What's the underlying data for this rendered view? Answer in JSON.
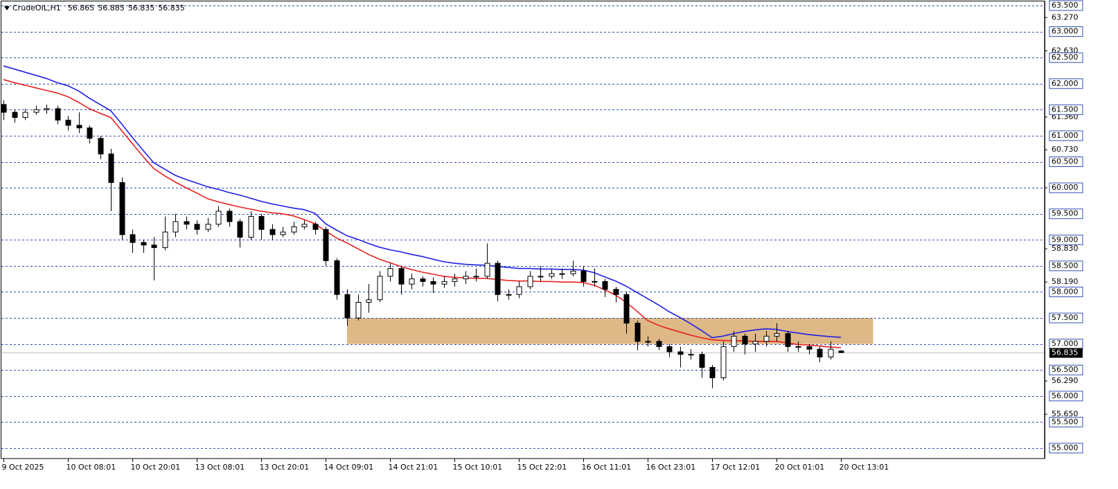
{
  "chart_data": {
    "type": "candlestick",
    "symbol": "CrudeOIL,H1",
    "header_values": [
      56.865,
      56.885,
      56.835,
      56.835
    ],
    "categories": [
      "9 Oct 2025",
      null,
      null,
      null,
      null,
      null,
      "10 Oct 08:01",
      null,
      null,
      null,
      null,
      null,
      "10 Oct 20:01",
      null,
      null,
      null,
      null,
      null,
      "13 Oct 08:01",
      null,
      null,
      null,
      null,
      null,
      "13 Oct 20:01",
      null,
      null,
      null,
      null,
      null,
      "14 Oct 09:01",
      null,
      null,
      null,
      null,
      null,
      "14 Oct 21:01",
      null,
      null,
      null,
      null,
      null,
      "15 Oct 10:01",
      null,
      null,
      null,
      null,
      null,
      "15 Oct 22:01",
      null,
      null,
      null,
      null,
      null,
      "16 Oct 11:01",
      null,
      null,
      null,
      null,
      null,
      "16 Oct 23:01",
      null,
      null,
      null,
      null,
      null,
      "17 Oct 12:01",
      null,
      null,
      null,
      null,
      null,
      "20 Oct 01:01",
      null,
      null,
      null,
      null,
      null,
      "20 Oct 13:01"
    ],
    "open": [
      61.6,
      61.45,
      61.35,
      61.45,
      61.5,
      61.52,
      61.3,
      61.2,
      61.15,
      60.95,
      60.65,
      60.1,
      59.1,
      58.95,
      58.9,
      58.85,
      59.15,
      59.35,
      59.3,
      59.2,
      59.3,
      59.55,
      59.35,
      59.05,
      59.45,
      59.2,
      59.1,
      59.15,
      59.25,
      59.3,
      59.2,
      58.6,
      57.95,
      57.5,
      57.8,
      57.85,
      58.3,
      58.45,
      58.15,
      58.25,
      58.2,
      58.15,
      58.2,
      58.25,
      58.3,
      58.3,
      58.55,
      57.95,
      57.95,
      58.1,
      58.3,
      58.3,
      58.35,
      58.35,
      58.4,
      58.2,
      58.2,
      58.05,
      57.95,
      57.4,
      57.05,
      57.05,
      56.95,
      56.85,
      56.8,
      56.8,
      56.55,
      56.35,
      56.95,
      57.15,
      57.0,
      57.05,
      57.15,
      57.2,
      56.95,
      56.95,
      56.9,
      56.75,
      56.865
    ],
    "high": [
      61.68,
      61.5,
      61.52,
      61.58,
      61.6,
      61.58,
      61.38,
      61.45,
      61.2,
      61.0,
      60.75,
      60.2,
      59.2,
      59.0,
      59.05,
      59.45,
      59.5,
      59.45,
      59.38,
      59.42,
      59.65,
      59.6,
      59.4,
      59.55,
      59.5,
      59.3,
      59.25,
      59.35,
      59.38,
      59.35,
      59.25,
      58.65,
      58.05,
      57.95,
      58.15,
      58.4,
      58.55,
      58.5,
      58.35,
      58.3,
      58.28,
      58.3,
      58.35,
      58.4,
      58.45,
      58.93,
      58.6,
      58.05,
      58.2,
      58.4,
      58.5,
      58.45,
      58.45,
      58.6,
      58.5,
      58.45,
      58.25,
      58.1,
      58.0,
      57.45,
      57.15,
      57.1,
      57.0,
      56.95,
      56.9,
      56.85,
      56.6,
      57.05,
      57.25,
      57.2,
      57.2,
      57.25,
      57.4,
      57.25,
      57.05,
      57.0,
      56.95,
      57.05,
      56.885
    ],
    "low": [
      61.3,
      61.25,
      61.3,
      61.4,
      61.42,
      61.22,
      61.1,
      61.05,
      60.85,
      60.55,
      59.55,
      59.0,
      58.75,
      58.75,
      58.22,
      58.8,
      59.05,
      59.2,
      59.1,
      59.15,
      59.25,
      59.25,
      58.85,
      59.0,
      59.0,
      59.0,
      59.05,
      59.1,
      59.2,
      59.1,
      58.5,
      57.85,
      57.35,
      57.45,
      57.6,
      57.8,
      58.2,
      57.95,
      58.05,
      58.1,
      57.98,
      58.08,
      58.1,
      58.15,
      58.2,
      58.25,
      57.82,
      57.85,
      57.88,
      58.05,
      58.2,
      58.25,
      58.25,
      58.3,
      58.1,
      58.1,
      57.9,
      57.8,
      57.2,
      56.88,
      56.95,
      56.88,
      56.75,
      56.55,
      56.7,
      56.35,
      56.15,
      56.3,
      56.85,
      56.8,
      56.85,
      56.95,
      57.05,
      56.85,
      56.85,
      56.8,
      56.65,
      56.7,
      56.835
    ],
    "close": [
      61.45,
      61.35,
      61.45,
      61.5,
      61.52,
      61.3,
      61.2,
      61.15,
      60.95,
      60.65,
      60.1,
      59.1,
      58.95,
      58.9,
      58.85,
      59.15,
      59.35,
      59.3,
      59.2,
      59.3,
      59.55,
      59.35,
      59.05,
      59.45,
      59.2,
      59.1,
      59.15,
      59.25,
      59.3,
      59.2,
      58.6,
      57.95,
      57.5,
      57.8,
      57.85,
      58.3,
      58.45,
      58.15,
      58.25,
      58.2,
      58.15,
      58.2,
      58.25,
      58.3,
      58.3,
      58.55,
      57.95,
      57.95,
      58.1,
      58.3,
      58.3,
      58.35,
      58.35,
      58.4,
      58.2,
      58.2,
      58.05,
      57.95,
      57.4,
      57.05,
      57.05,
      56.95,
      56.85,
      56.8,
      56.8,
      56.55,
      56.35,
      56.95,
      57.15,
      57.0,
      57.05,
      57.15,
      57.2,
      56.95,
      56.95,
      56.9,
      56.75,
      56.9,
      56.835
    ],
    "series": [
      {
        "color": "#e8211d",
        "values": [
          62.08,
          62.02,
          61.97,
          61.92,
          61.87,
          61.82,
          61.75,
          61.64,
          61.52,
          61.43,
          61.35,
          61.1,
          60.85,
          60.6,
          60.37,
          60.23,
          60.11,
          60.0,
          59.9,
          59.79,
          59.73,
          59.68,
          59.63,
          59.59,
          59.55,
          59.52,
          59.5,
          59.46,
          59.39,
          59.31,
          59.17,
          59.04,
          58.94,
          58.83,
          58.72,
          58.63,
          58.56,
          58.49,
          58.43,
          58.38,
          58.34,
          58.3,
          58.28,
          58.27,
          58.26,
          58.26,
          58.24,
          58.22,
          58.21,
          58.21,
          58.2,
          58.2,
          58.19,
          58.19,
          58.18,
          58.13,
          58.04,
          57.94,
          57.8,
          57.63,
          57.45,
          57.36,
          57.29,
          57.23,
          57.17,
          57.12,
          57.08,
          57.07,
          57.06,
          57.06,
          57.05,
          57.05,
          57.05,
          57.02,
          56.99,
          56.98,
          56.96,
          56.94,
          56.93
        ]
      },
      {
        "color": "#1e1ee6",
        "values": [
          62.34,
          62.28,
          62.22,
          62.16,
          62.1,
          62.02,
          61.96,
          61.86,
          61.72,
          61.6,
          61.48,
          61.23,
          60.97,
          60.72,
          60.48,
          60.36,
          60.24,
          60.16,
          60.09,
          60.02,
          59.97,
          59.91,
          59.86,
          59.8,
          59.74,
          59.69,
          59.65,
          59.61,
          59.58,
          59.51,
          59.31,
          59.19,
          59.08,
          59.01,
          58.93,
          58.86,
          58.81,
          58.77,
          58.72,
          58.68,
          58.63,
          58.58,
          58.55,
          58.53,
          58.52,
          58.51,
          58.49,
          58.47,
          58.45,
          58.45,
          58.44,
          58.44,
          58.43,
          58.43,
          58.42,
          58.37,
          58.29,
          58.21,
          58.11,
          57.99,
          57.87,
          57.75,
          57.62,
          57.51,
          57.39,
          57.26,
          57.12,
          57.15,
          57.2,
          57.24,
          57.27,
          57.29,
          57.28,
          57.24,
          57.21,
          57.18,
          57.16,
          57.14,
          57.13
        ]
      }
    ],
    "zones": [
      {
        "x_start": 32,
        "x_end": 81,
        "low": 57.0,
        "high": 57.5,
        "color": "#deb887"
      }
    ],
    "current_price": 56.835,
    "ylim": [
      54.8,
      63.58
    ],
    "yticks": [
      {
        "value": 63.27,
        "label": "63.270"
      },
      {
        "value": 62.63,
        "label": "62.630"
      },
      {
        "value": 61.36,
        "label": "61.360"
      },
      {
        "value": 60.73,
        "label": "60.730"
      },
      {
        "value": 60.0,
        "label": "60.000"
      },
      {
        "value": 58.83,
        "label": "58.830"
      },
      {
        "value": 58.19,
        "label": "58.190"
      },
      {
        "value": 56.29,
        "label": "56.290"
      },
      {
        "value": 55.65,
        "label": "55.650"
      }
    ],
    "levels": [
      {
        "value": 63.5,
        "label": "63.500"
      },
      {
        "value": 63.0,
        "label": "63.000"
      },
      {
        "value": 62.5,
        "label": "62.500"
      },
      {
        "value": 62.0,
        "label": "62.000"
      },
      {
        "value": 61.5,
        "label": "61.500"
      },
      {
        "value": 61.0,
        "label": "61.000"
      },
      {
        "value": 60.5,
        "label": "60.500"
      },
      {
        "value": 60.0,
        "label": "60.000"
      },
      {
        "value": 59.5,
        "label": "59.500"
      },
      {
        "value": 59.0,
        "label": "59.000"
      },
      {
        "value": 58.5,
        "label": "58.500"
      },
      {
        "value": 58.0,
        "label": "58.000"
      },
      {
        "value": 57.5,
        "label": "57.500"
      },
      {
        "value": 57.0,
        "label": "57.000"
      },
      {
        "value": 56.5,
        "label": "56.500"
      },
      {
        "value": 56.0,
        "label": "56.000"
      },
      {
        "value": 55.5,
        "label": "55.500"
      },
      {
        "value": 55.0,
        "label": "55.000"
      }
    ],
    "level_color": "#2f4fb5",
    "bull_color": "#ffffff",
    "bear_color": "#000000"
  }
}
